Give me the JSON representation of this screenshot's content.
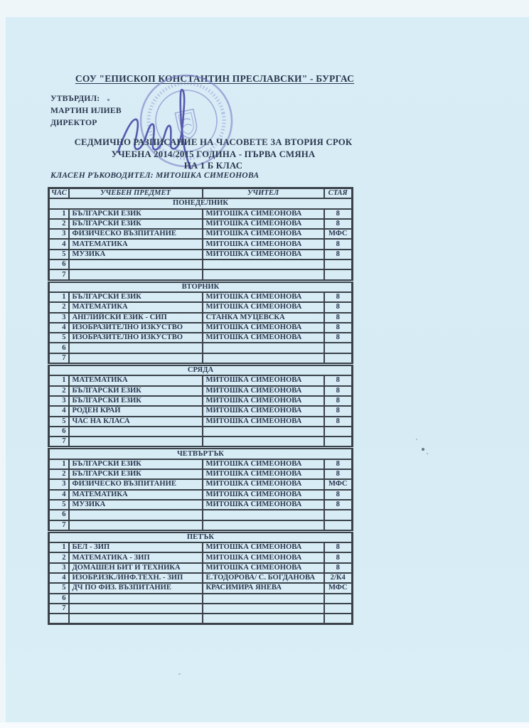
{
  "header": {
    "school_title": "СОУ \"ЕПИСКОП КОНСТАНТИН ПРЕСЛАВСКИ\" - БУРГАС",
    "approved_label": "УТВЪРДИЛ:",
    "approver_name": "МАРТИН ИЛИЕВ",
    "approver_title": "ДИРЕКТОР",
    "subtitle_line1": "СЕДМИЧНО РАЗПИСАНИЕ НА ЧАСОВЕТЕ ЗА ВТОРИЯ СРОК",
    "subtitle_line2": "УЧЕБНА 2014/2015 ГОДИНА - ПЪРВА СМЯНА",
    "subtitle_line3": "НА 1 Б КЛАС",
    "class_teacher_line": "КЛАСЕН РЪКОВОДИТЕЛ: МИТОШКА СИМЕОНОВА"
  },
  "table": {
    "headers": [
      "ЧАС",
      "УЧЕБЕН ПРЕДМЕТ",
      "УЧИТЕЛ",
      "СТАЯ"
    ],
    "days": [
      {
        "name": "ПОНЕДЕЛНИК",
        "rows": [
          {
            "period": "1",
            "subject": "БЪЛГАРСКИ ЕЗИК",
            "teacher": "МИТОШКА СИМЕОНОВА",
            "room": "8"
          },
          {
            "period": "2",
            "subject": "БЪЛГАРСКИ ЕЗИК",
            "teacher": "МИТОШКА СИМЕОНОВА",
            "room": "8"
          },
          {
            "period": "3",
            "subject": "ФИЗИЧЕСКО ВЪЗПИТАНИЕ",
            "teacher": "МИТОШКА СИМЕОНОВА",
            "room": "МФС"
          },
          {
            "period": "4",
            "subject": "МАТЕМАТИКА",
            "teacher": "МИТОШКА СИМЕОНОВА",
            "room": "8"
          },
          {
            "period": "5",
            "subject": "МУЗИКА",
            "teacher": "МИТОШКА СИМЕОНОВА",
            "room": "8"
          },
          {
            "period": "6",
            "subject": "",
            "teacher": "",
            "room": ""
          },
          {
            "period": "7",
            "subject": "",
            "teacher": "",
            "room": ""
          }
        ]
      },
      {
        "name": "ВТОРНИК",
        "rows": [
          {
            "period": "1",
            "subject": "БЪЛГАРСКИ ЕЗИК",
            "teacher": "МИТОШКА СИМЕОНОВА",
            "room": "8"
          },
          {
            "period": "2",
            "subject": "МАТЕМАТИКА",
            "teacher": "МИТОШКА СИМЕОНОВА",
            "room": "8"
          },
          {
            "period": "3",
            "subject": "АНГЛИЙСКИ ЕЗИК - СИП",
            "teacher": "СТАНКА МУЦЕВСКА",
            "room": "8"
          },
          {
            "period": "4",
            "subject": "ИЗОБРАЗИТЕЛНО ИЗКУСТВО",
            "teacher": "МИТОШКА СИМЕОНОВА",
            "room": "8"
          },
          {
            "period": "5",
            "subject": "ИЗОБРАЗИТЕЛНО ИЗКУСТВО",
            "teacher": "МИТОШКА СИМЕОНОВА",
            "room": "8"
          },
          {
            "period": "6",
            "subject": "",
            "teacher": "",
            "room": ""
          },
          {
            "period": "7",
            "subject": "",
            "teacher": "",
            "room": ""
          }
        ]
      },
      {
        "name": "СРЯДА",
        "rows": [
          {
            "period": "1",
            "subject": "МАТЕМАТИКА",
            "teacher": "МИТОШКА СИМЕОНОВА",
            "room": "8"
          },
          {
            "period": "2",
            "subject": "БЪЛГАРСКИ ЕЗИК",
            "teacher": "МИТОШКА СИМЕОНОВА",
            "room": "8"
          },
          {
            "period": "3",
            "subject": "БЪЛГАРСКИ ЕЗИК",
            "teacher": "МИТОШКА СИМЕОНОВА",
            "room": "8"
          },
          {
            "period": "4",
            "subject": "РОДЕН КРАЙ",
            "teacher": "МИТОШКА СИМЕОНОВА",
            "room": "8"
          },
          {
            "period": "5",
            "subject": "ЧАС НА КЛАСА",
            "teacher": "МИТОШКА СИМЕОНОВА",
            "room": "8"
          },
          {
            "period": "6",
            "subject": "",
            "teacher": "",
            "room": ""
          },
          {
            "period": "7",
            "subject": "",
            "teacher": "",
            "room": ""
          }
        ]
      },
      {
        "name": "ЧЕТВЪРТЪК",
        "rows": [
          {
            "period": "1",
            "subject": "БЪЛГАРСКИ ЕЗИК",
            "teacher": "МИТОШКА СИМЕОНОВА",
            "room": "8"
          },
          {
            "period": "2",
            "subject": "БЪЛГАРСКИ ЕЗИК",
            "teacher": "МИТОШКА СИМЕОНОВА",
            "room": "8"
          },
          {
            "period": "3",
            "subject": "ФИЗИЧЕСКО ВЪЗПИТАНИЕ",
            "teacher": "МИТОШКА СИМЕОНОВА",
            "room": "МФС"
          },
          {
            "period": "4",
            "subject": "МАТЕМАТИКА",
            "teacher": "МИТОШКА СИМЕОНОВА",
            "room": "8"
          },
          {
            "period": "5",
            "subject": "МУЗИКА",
            "teacher": "МИТОШКА СИМЕОНОВА",
            "room": "8"
          },
          {
            "period": "6",
            "subject": "",
            "teacher": "",
            "room": ""
          },
          {
            "period": "7",
            "subject": "",
            "teacher": "",
            "room": ""
          }
        ]
      },
      {
        "name": "ПЕТЪК",
        "rows": [
          {
            "period": "1",
            "subject": "БЕЛ - ЗИП",
            "teacher": "МИТОШКА СИМЕОНОВА",
            "room": "8"
          },
          {
            "period": "2",
            "subject": "МАТЕМАТИКА - ЗИП",
            "teacher": "МИТОШКА СИМЕОНОВА",
            "room": "8"
          },
          {
            "period": "3",
            "subject": "ДОМАШЕН БИТ И ТЕХНИКА",
            "teacher": "МИТОШКА СИМЕОНОВА",
            "room": "8"
          },
          {
            "period": "4",
            "subject": "ИЗОБР.ИЗК./ИНФ.ТЕХН. - ЗИП",
            "teacher": "Е.ТОДОРОВА/ С. БОГДАНОВА",
            "room": "2/К4"
          },
          {
            "period": "5",
            "subject": "ДЧ ПО ФИЗ. ВЪЗПИТАНИЕ",
            "teacher": "КРАСИМИРА ЯНЕВА",
            "room": "МФС"
          },
          {
            "period": "6",
            "subject": "",
            "teacher": "",
            "room": ""
          },
          {
            "period": "7",
            "subject": "",
            "teacher": "",
            "room": ""
          }
        ]
      }
    ],
    "trailing_empty_row": true
  },
  "colors": {
    "paper": "#d8ecf5",
    "ink": "#2b3850",
    "table_border": "#3a4149",
    "stamp_blue": "#7b7fc6",
    "signature_blue": "#575aae"
  }
}
